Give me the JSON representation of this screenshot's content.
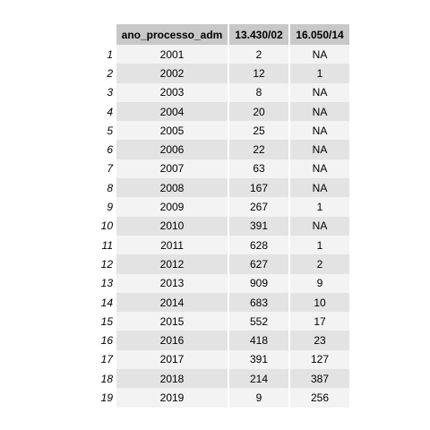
{
  "table": {
    "headers": [
      "",
      "ano_processo_adm",
      "13.430/02",
      "16.050/14"
    ],
    "rows": [
      {
        "index": "1",
        "ano": "2001",
        "lei_13430_02": "2",
        "lei_16050_14": "NA"
      },
      {
        "index": "2",
        "ano": "2002",
        "lei_13430_02": "12",
        "lei_16050_14": "1"
      },
      {
        "index": "3",
        "ano": "2003",
        "lei_13430_02": "8",
        "lei_16050_14": "NA"
      },
      {
        "index": "4",
        "ano": "2004",
        "lei_13430_02": "20",
        "lei_16050_14": "NA"
      },
      {
        "index": "5",
        "ano": "2005",
        "lei_13430_02": "25",
        "lei_16050_14": "NA"
      },
      {
        "index": "6",
        "ano": "2006",
        "lei_13430_02": "22",
        "lei_16050_14": "NA"
      },
      {
        "index": "7",
        "ano": "2007",
        "lei_13430_02": "63",
        "lei_16050_14": "NA"
      },
      {
        "index": "8",
        "ano": "2008",
        "lei_13430_02": "167",
        "lei_16050_14": "NA"
      },
      {
        "index": "9",
        "ano": "2009",
        "lei_13430_02": "267",
        "lei_16050_14": "1"
      },
      {
        "index": "10",
        "ano": "2010",
        "lei_13430_02": "391",
        "lei_16050_14": "NA"
      },
      {
        "index": "11",
        "ano": "2011",
        "lei_13430_02": "628",
        "lei_16050_14": "1"
      },
      {
        "index": "12",
        "ano": "2012",
        "lei_13430_02": "627",
        "lei_16050_14": "2"
      },
      {
        "index": "13",
        "ano": "2013",
        "lei_13430_02": "909",
        "lei_16050_14": "9"
      },
      {
        "index": "14",
        "ano": "2014",
        "lei_13430_02": "683",
        "lei_16050_14": "10"
      },
      {
        "index": "15",
        "ano": "2015",
        "lei_13430_02": "552",
        "lei_16050_14": "17"
      },
      {
        "index": "16",
        "ano": "2016",
        "lei_13430_02": "418",
        "lei_16050_14": "23"
      },
      {
        "index": "17",
        "ano": "2017",
        "lei_13430_02": "391",
        "lei_16050_14": "127"
      },
      {
        "index": "18",
        "ano": "2018",
        "lei_13430_02": "214",
        "lei_16050_14": "387"
      },
      {
        "index": "19",
        "ano": "2019",
        "lei_13430_02": "9",
        "lei_16050_14": "256"
      }
    ]
  },
  "colors": {
    "header_bg": "#c8c8c8",
    "row_light": "#f3f3f3",
    "row_dark": "#e3e3e3"
  }
}
